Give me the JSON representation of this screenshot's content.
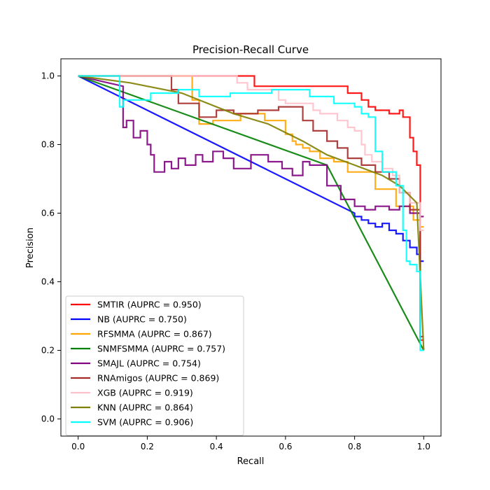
{
  "chart_data": {
    "type": "line",
    "title": "Precision-Recall Curve",
    "xlabel": "Recall",
    "ylabel": "Precision",
    "xlim": [
      -0.05,
      1.05
    ],
    "ylim": [
      -0.05,
      1.05
    ],
    "xticks": [
      "0.0",
      "0.2",
      "0.4",
      "0.6",
      "0.8",
      "1.0"
    ],
    "yticks": [
      "0.0",
      "0.2",
      "0.4",
      "0.6",
      "0.8",
      "1.0"
    ],
    "grid": false,
    "legend_position": "lower-left",
    "series": [
      {
        "name": "SMTIR (AUPRC = 0.950)",
        "color": "#ff0000",
        "x": [
          0,
          0.51,
          0.51,
          0.78,
          0.78,
          0.82,
          0.82,
          0.84,
          0.84,
          0.86,
          0.86,
          0.9,
          0.9,
          0.93,
          0.93,
          0.94,
          0.94,
          0.96,
          0.96,
          0.97,
          0.97,
          0.98,
          0.98,
          0.99,
          0.99,
          1.0
        ],
        "y": [
          1.0,
          1.0,
          0.97,
          0.97,
          0.95,
          0.95,
          0.93,
          0.93,
          0.91,
          0.91,
          0.9,
          0.9,
          0.89,
          0.89,
          0.9,
          0.9,
          0.88,
          0.88,
          0.82,
          0.82,
          0.78,
          0.78,
          0.74,
          0.74,
          0.23,
          0.23
        ]
      },
      {
        "name": "NB (AUPRC = 0.750)",
        "color": "#0000ff",
        "x": [
          0,
          0.8,
          0.8,
          0.82,
          0.82,
          0.84,
          0.84,
          0.86,
          0.86,
          0.88,
          0.88,
          0.9,
          0.9,
          0.92,
          0.92,
          0.94,
          0.94,
          0.96,
          0.96,
          0.98,
          0.98,
          0.99,
          0.99,
          1.0
        ],
        "y": [
          1.0,
          0.6,
          0.59,
          0.59,
          0.58,
          0.58,
          0.57,
          0.57,
          0.56,
          0.56,
          0.57,
          0.57,
          0.55,
          0.55,
          0.54,
          0.54,
          0.52,
          0.52,
          0.5,
          0.5,
          0.48,
          0.48,
          0.46,
          0.46
        ]
      },
      {
        "name": "RFSMMA (AUPRC = 0.867)",
        "color": "#ffa500",
        "x": [
          0,
          0.33,
          0.33,
          0.35,
          0.35,
          0.39,
          0.39,
          0.47,
          0.47,
          0.54,
          0.54,
          0.6,
          0.6,
          0.62,
          0.62,
          0.63,
          0.63,
          0.65,
          0.65,
          0.67,
          0.67,
          0.7,
          0.7,
          0.74,
          0.74,
          0.78,
          0.78,
          0.86,
          0.86,
          0.92,
          0.92,
          0.97,
          0.97,
          0.99,
          0.99,
          1.0
        ],
        "y": [
          1.0,
          1.0,
          0.93,
          0.93,
          0.86,
          0.86,
          0.87,
          0.87,
          0.89,
          0.89,
          0.87,
          0.87,
          0.83,
          0.83,
          0.81,
          0.81,
          0.8,
          0.8,
          0.79,
          0.79,
          0.78,
          0.78,
          0.76,
          0.76,
          0.75,
          0.75,
          0.72,
          0.72,
          0.67,
          0.67,
          0.62,
          0.62,
          0.58,
          0.58,
          0.56,
          0.56
        ]
      },
      {
        "name": "SNMFSMMA (AUPRC = 0.757)",
        "color": "#008000",
        "x": [
          0,
          0.72,
          1.0
        ],
        "y": [
          1.0,
          0.74,
          0.2
        ]
      },
      {
        "name": "SMAJL (AUPRC = 0.754)",
        "color": "#800080",
        "x": [
          0,
          0.13,
          0.13,
          0.14,
          0.14,
          0.16,
          0.16,
          0.18,
          0.18,
          0.2,
          0.2,
          0.21,
          0.21,
          0.22,
          0.22,
          0.25,
          0.25,
          0.27,
          0.27,
          0.29,
          0.29,
          0.31,
          0.31,
          0.34,
          0.34,
          0.36,
          0.36,
          0.39,
          0.39,
          0.42,
          0.42,
          0.45,
          0.45,
          0.5,
          0.5,
          0.55,
          0.55,
          0.59,
          0.59,
          0.62,
          0.62,
          0.65,
          0.65,
          0.67,
          0.67,
          0.72,
          0.72,
          0.76,
          0.76,
          0.8,
          0.8,
          0.83,
          0.83,
          0.86,
          0.86,
          0.9,
          0.9,
          0.93,
          0.93,
          0.96,
          0.96,
          0.99,
          0.99,
          1.0
        ],
        "y": [
          1.0,
          0.97,
          0.85,
          0.85,
          0.87,
          0.87,
          0.82,
          0.82,
          0.84,
          0.84,
          0.8,
          0.8,
          0.77,
          0.77,
          0.72,
          0.72,
          0.75,
          0.75,
          0.73,
          0.73,
          0.76,
          0.76,
          0.74,
          0.74,
          0.77,
          0.77,
          0.75,
          0.75,
          0.78,
          0.78,
          0.76,
          0.76,
          0.73,
          0.73,
          0.77,
          0.77,
          0.75,
          0.75,
          0.73,
          0.73,
          0.71,
          0.71,
          0.75,
          0.75,
          0.74,
          0.74,
          0.68,
          0.68,
          0.64,
          0.64,
          0.62,
          0.62,
          0.61,
          0.61,
          0.62,
          0.62,
          0.61,
          0.61,
          0.62,
          0.62,
          0.6,
          0.6,
          0.59,
          0.59
        ]
      },
      {
        "name": "RNAmigos (AUPRC = 0.869)",
        "color": "#a52a2a",
        "x": [
          0,
          0.27,
          0.27,
          0.29,
          0.29,
          0.35,
          0.35,
          0.4,
          0.4,
          0.45,
          0.45,
          0.52,
          0.52,
          0.58,
          0.58,
          0.65,
          0.65,
          0.68,
          0.68,
          0.72,
          0.72,
          0.75,
          0.75,
          0.78,
          0.78,
          0.82,
          0.82,
          0.86,
          0.86,
          0.9,
          0.9,
          0.93,
          0.93,
          0.96,
          0.96,
          0.99,
          0.99,
          1.0
        ],
        "y": [
          1.0,
          1.0,
          0.96,
          0.96,
          0.92,
          0.92,
          0.88,
          0.88,
          0.9,
          0.9,
          0.89,
          0.89,
          0.9,
          0.9,
          0.91,
          0.91,
          0.87,
          0.87,
          0.84,
          0.84,
          0.81,
          0.81,
          0.79,
          0.79,
          0.76,
          0.76,
          0.74,
          0.74,
          0.72,
          0.72,
          0.7,
          0.7,
          0.66,
          0.66,
          0.61,
          0.61,
          0.24,
          0.24
        ]
      },
      {
        "name": "XGB (AUPRC = 0.919)",
        "color": "#ffc0cb",
        "x": [
          0,
          0.46,
          0.46,
          0.49,
          0.49,
          0.58,
          0.58,
          0.6,
          0.6,
          0.68,
          0.68,
          0.7,
          0.7,
          0.75,
          0.75,
          0.78,
          0.78,
          0.8,
          0.8,
          0.82,
          0.82,
          0.83,
          0.83,
          0.85,
          0.85,
          0.88,
          0.88,
          0.91,
          0.91,
          0.93,
          0.93,
          0.96,
          0.96,
          0.99,
          0.99,
          1.0
        ],
        "y": [
          1.0,
          1.0,
          0.98,
          0.98,
          0.96,
          0.96,
          0.93,
          0.93,
          0.92,
          0.92,
          0.9,
          0.9,
          0.89,
          0.89,
          0.87,
          0.87,
          0.85,
          0.85,
          0.84,
          0.84,
          0.8,
          0.8,
          0.77,
          0.77,
          0.75,
          0.75,
          0.73,
          0.73,
          0.71,
          0.71,
          0.66,
          0.66,
          0.63,
          0.63,
          0.55,
          0.55
        ]
      },
      {
        "name": "KNN (AUPRC = 0.864)",
        "color": "#808000",
        "x": [
          0,
          0.15,
          0.3,
          0.45,
          0.55,
          0.65,
          0.72,
          0.8,
          0.88,
          0.93,
          0.98,
          1.0
        ],
        "y": [
          1.0,
          0.98,
          0.95,
          0.89,
          0.86,
          0.81,
          0.77,
          0.74,
          0.71,
          0.68,
          0.63,
          0.2
        ]
      },
      {
        "name": "SVM (AUPRC = 0.906)",
        "color": "#00ffff",
        "x": [
          0,
          0.12,
          0.12,
          0.13,
          0.13,
          0.21,
          0.21,
          0.29,
          0.29,
          0.35,
          0.35,
          0.44,
          0.44,
          0.56,
          0.56,
          0.67,
          0.67,
          0.74,
          0.74,
          0.8,
          0.8,
          0.82,
          0.82,
          0.84,
          0.84,
          0.86,
          0.86,
          0.88,
          0.88,
          0.92,
          0.92,
          0.94,
          0.94,
          0.95,
          0.95,
          0.96,
          0.96,
          0.98,
          0.98,
          0.99,
          0.99,
          1.0
        ],
        "y": [
          1.0,
          1.0,
          0.91,
          0.91,
          0.93,
          0.93,
          0.95,
          0.95,
          0.96,
          0.96,
          0.94,
          0.94,
          0.95,
          0.95,
          0.96,
          0.96,
          0.94,
          0.94,
          0.92,
          0.92,
          0.91,
          0.91,
          0.89,
          0.89,
          0.88,
          0.88,
          0.78,
          0.78,
          0.72,
          0.72,
          0.68,
          0.68,
          0.55,
          0.55,
          0.46,
          0.46,
          0.45,
          0.45,
          0.43,
          0.43,
          0.2,
          0.2
        ]
      }
    ]
  }
}
